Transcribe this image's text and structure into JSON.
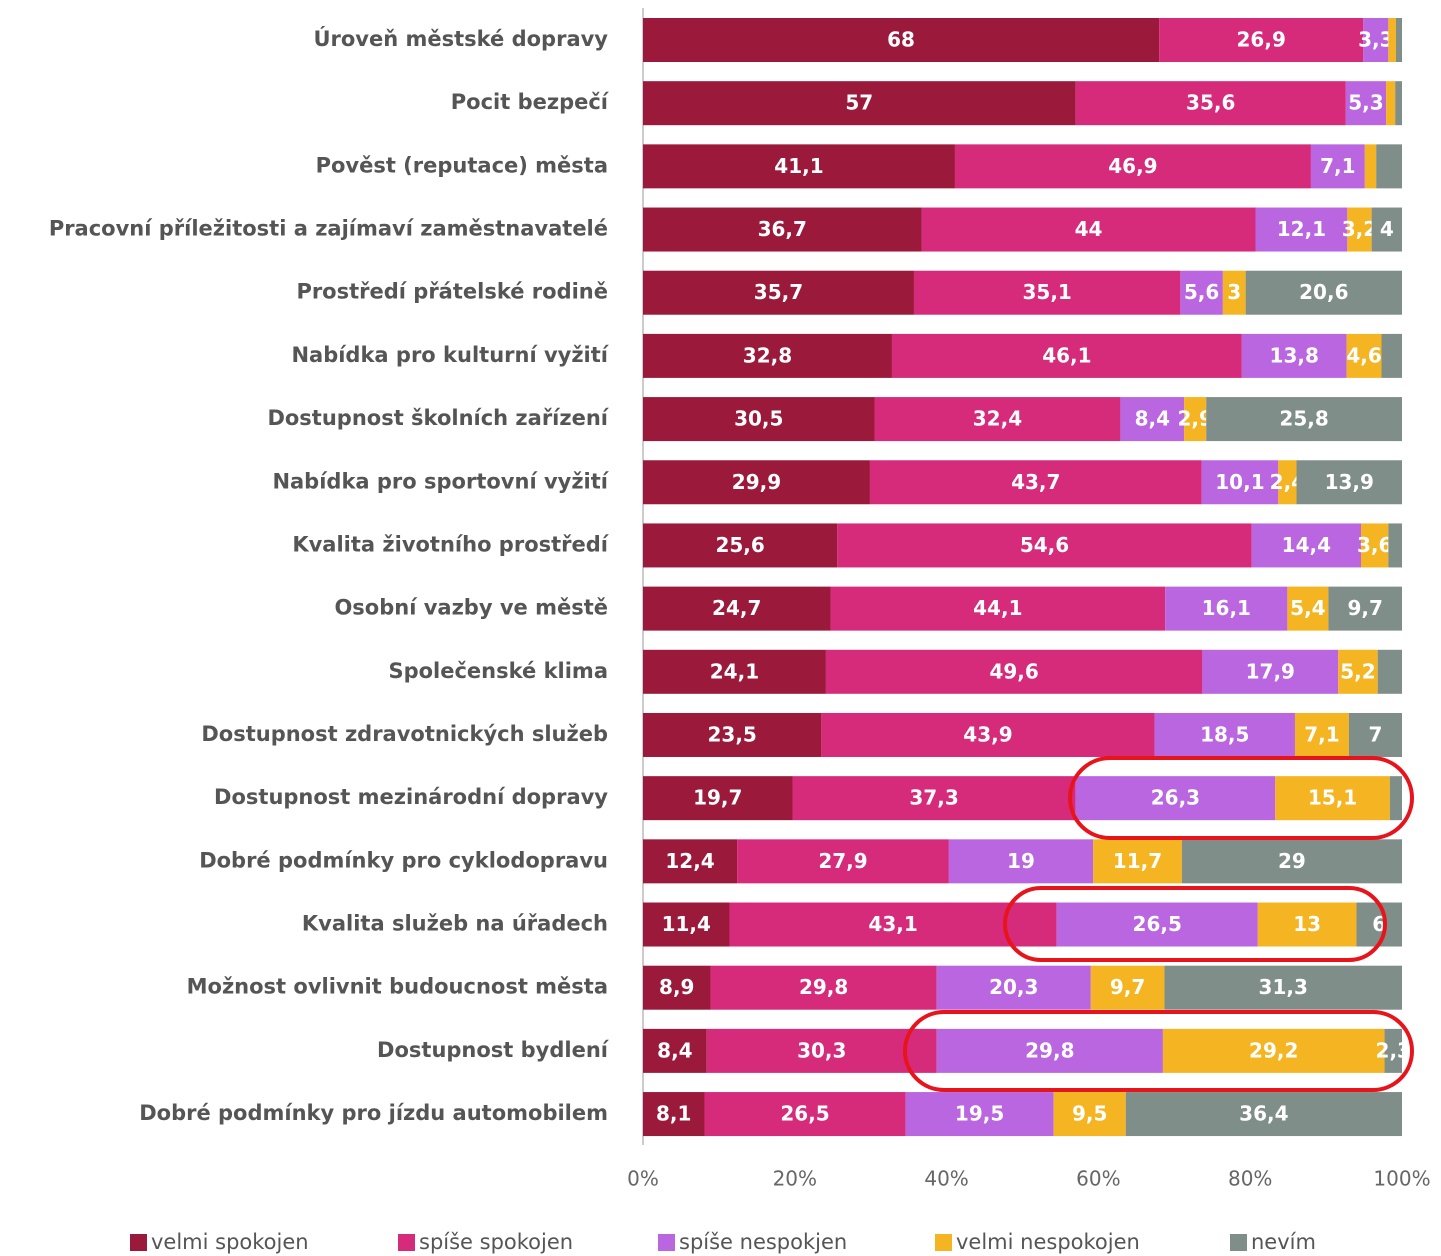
{
  "chart_data": {
    "type": "stacked_bar_horizontal",
    "categories": [
      "Úroveň městské dopravy",
      "Pocit bezpečí",
      "Pověst (reputace) města",
      "Pracovní příležitosti a zajímaví zaměstnavatelé",
      "Prostředí přátelské rodině",
      "Nabídka pro kulturní vyžití",
      "Dostupnost školních zařízení",
      "Nabídka pro sportovní vyžití",
      "Kvalita životního prostředí",
      "Osobní vazby ve městě",
      "Společenské klima",
      "Dostupnost zdravotnických služeb",
      "Dostupnost mezinárodní dopravy",
      "Dobré podmínky pro cyklodopravu",
      "Kvalita služeb na úřadech",
      "Možnost ovlivnit budoucnost města",
      "Dostupnost bydlení",
      "Dobré podmínky pro jízdu automobilem"
    ],
    "series": [
      {
        "name": "velmi spokojen",
        "color": "#9b1a3b",
        "values": [
          68,
          57,
          41.1,
          36.7,
          35.7,
          32.8,
          30.5,
          29.9,
          25.6,
          24.7,
          24.1,
          23.5,
          19.7,
          12.4,
          11.4,
          8.9,
          8.4,
          8.1
        ],
        "value_labels": [
          "68",
          "57",
          "41,1",
          "36,7",
          "35,7",
          "32,8",
          "30,5",
          "29,9",
          "25,6",
          "24,7",
          "24,1",
          "23,5",
          "19,7",
          "12,4",
          "11,4",
          "8,9",
          "8,4",
          "8,1"
        ]
      },
      {
        "name": "spíše spokojen",
        "color": "#d62a7b",
        "values": [
          26.9,
          35.6,
          46.9,
          44,
          35.1,
          46.1,
          32.4,
          43.7,
          54.6,
          44.1,
          49.6,
          43.9,
          37.3,
          27.9,
          43.1,
          29.8,
          30.3,
          26.5
        ],
        "value_labels": [
          "26,9",
          "35,6",
          "46,9",
          "44",
          "35,1",
          "46,1",
          "32,4",
          "43,7",
          "54,6",
          "44,1",
          "49,6",
          "43,9",
          "37,3",
          "27,9",
          "43,1",
          "29,8",
          "30,3",
          "26,5"
        ]
      },
      {
        "name": "spíše nespokjen",
        "color": "#b966e0",
        "values": [
          3.3,
          5.3,
          7.1,
          12.1,
          5.6,
          13.8,
          8.4,
          10.1,
          14.4,
          16.1,
          17.9,
          18.5,
          26.3,
          19,
          26.5,
          20.3,
          29.8,
          19.5
        ],
        "value_labels": [
          "3,3",
          "5,3",
          "7,1",
          "12,1",
          "5,6",
          "13,8",
          "8,4",
          "10,1",
          "14,4",
          "16,1",
          "17,9",
          "18,5",
          "26,3",
          "19",
          "26,5",
          "20,3",
          "29,8",
          "19,5"
        ]
      },
      {
        "name": "velmi nespokojen",
        "color": "#f5b522",
        "values": [
          1,
          1.2,
          1.5,
          3.2,
          3,
          4.6,
          2.9,
          2.4,
          3.6,
          5.4,
          5.2,
          7.1,
          15.1,
          11.7,
          13,
          9.7,
          29.2,
          9.5
        ],
        "value_labels": [
          null,
          null,
          null,
          "3,2",
          "3",
          "4,6",
          "2,9",
          "2,4",
          "3,6",
          "5,4",
          "5,2",
          "7,1",
          "15,1",
          "11,7",
          "13",
          "9,7",
          "29,2",
          "9,5"
        ]
      },
      {
        "name": "nevím",
        "color": "#7f8e89",
        "values": [
          0.8,
          0.9,
          3.4,
          4,
          20.6,
          2.7,
          25.8,
          13.9,
          1.8,
          9.7,
          3.2,
          7,
          1.6,
          29,
          6,
          31.3,
          2.3,
          36.4
        ],
        "value_labels": [
          null,
          null,
          null,
          "4",
          "20,6",
          null,
          "25,8",
          "13,9",
          null,
          "9,7",
          null,
          "7",
          null,
          "29",
          "6",
          "31,3",
          "2,3",
          "36,4"
        ]
      }
    ],
    "xlim": [
      0,
      100
    ],
    "xticks": [
      {
        "value": 0,
        "label": "0%"
      },
      {
        "value": 20,
        "label": "20%"
      },
      {
        "value": 40,
        "label": "40%"
      },
      {
        "value": 60,
        "label": "60%"
      },
      {
        "value": 80,
        "label": "80%"
      },
      {
        "value": 100,
        "label": "100%"
      }
    ],
    "legend": "bottom"
  }
}
